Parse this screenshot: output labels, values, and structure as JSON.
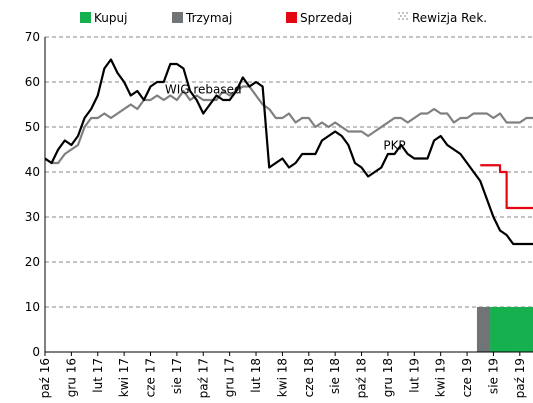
{
  "chart_data": {
    "type": "line",
    "legend": [
      {
        "name": "Kupuj",
        "color": "#17b04f",
        "style": "box"
      },
      {
        "name": "Trzymaj",
        "color": "#707477",
        "style": "box"
      },
      {
        "name": "Sprzedaj",
        "color": "#e30613",
        "style": "box"
      },
      {
        "name": "Rewizja Rek.",
        "color": "#9a9a9a",
        "style": "dots"
      }
    ],
    "annotations": [
      {
        "text": "WIG rebased",
        "index": 24,
        "value": 57.5
      },
      {
        "text": "PKP",
        "index": 53,
        "value": 45
      }
    ],
    "categories": [
      "paź 16",
      null,
      null,
      null,
      "gru 16",
      null,
      null,
      null,
      "lut 17",
      null,
      null,
      null,
      "kwi 17",
      null,
      null,
      null,
      "cze 17",
      null,
      null,
      null,
      "sie 17",
      null,
      null,
      null,
      "paź 17",
      null,
      null,
      null,
      "gru 17",
      null,
      null,
      null,
      "lut 18",
      null,
      null,
      null,
      "kwi 18",
      null,
      null,
      null,
      "cze 18",
      null,
      null,
      null,
      "sie 18",
      null,
      null,
      null,
      "paź 18",
      null,
      null,
      null,
      "gru 18",
      null,
      null,
      null,
      "lut 19",
      null,
      null,
      null,
      "kwi 19",
      null,
      null,
      null,
      "cze 19",
      null,
      null,
      null,
      "sie 19",
      null,
      null,
      null,
      "paź 19",
      null,
      null
    ],
    "series": [
      {
        "name": "WIG rebased",
        "color": "#808080",
        "kind": "line",
        "width": 2.2,
        "values": [
          43,
          42,
          42,
          44,
          45,
          46,
          50,
          52,
          52,
          53,
          52,
          53,
          54,
          55,
          54,
          56,
          56,
          57,
          56,
          57,
          56,
          58,
          56,
          57,
          56,
          56,
          56,
          58,
          57,
          58,
          59,
          59,
          57,
          55,
          54,
          52,
          52,
          53,
          51,
          52,
          52,
          50,
          51,
          50,
          51,
          50,
          49,
          49,
          49,
          48,
          49,
          50,
          51,
          52,
          52,
          51,
          52,
          53,
          53,
          54,
          53,
          53,
          51,
          52,
          52,
          53,
          53,
          53,
          52,
          53,
          51,
          51,
          51,
          52,
          52
        ]
      },
      {
        "name": "PKP",
        "color": "#000000",
        "kind": "line",
        "width": 2.2,
        "values": [
          43,
          42,
          45,
          47,
          46,
          48,
          52,
          54,
          57,
          63,
          65,
          62,
          60,
          57,
          58,
          56,
          59,
          60,
          60,
          64,
          64,
          63,
          58,
          56,
          53,
          55,
          57,
          56,
          56,
          58,
          61,
          59,
          60,
          59,
          41,
          42,
          43,
          41,
          42,
          44,
          44,
          44,
          47,
          48,
          49,
          48,
          46,
          42,
          41,
          39,
          40,
          41,
          44,
          44,
          46,
          44,
          43,
          43,
          43,
          47,
          48,
          46,
          45,
          44,
          42,
          40,
          38,
          34,
          30,
          27,
          26,
          24,
          24,
          24,
          24
        ]
      },
      {
        "color": "#e30613",
        "kind": "step",
        "width": 2.2,
        "values": [
          null,
          null,
          null,
          null,
          null,
          null,
          null,
          null,
          null,
          null,
          null,
          null,
          null,
          null,
          null,
          null,
          null,
          null,
          null,
          null,
          null,
          null,
          null,
          null,
          null,
          null,
          null,
          null,
          null,
          null,
          null,
          null,
          null,
          null,
          null,
          null,
          null,
          null,
          null,
          null,
          null,
          null,
          null,
          null,
          null,
          null,
          null,
          null,
          null,
          null,
          null,
          null,
          null,
          null,
          null,
          null,
          null,
          null,
          null,
          null,
          null,
          null,
          null,
          null,
          null,
          null,
          41.5,
          41.5,
          41.5,
          40,
          32,
          32,
          32,
          32,
          32
        ]
      },
      {
        "color": "#707477",
        "kind": "bar",
        "values": [
          null,
          null,
          null,
          null,
          null,
          null,
          null,
          null,
          null,
          null,
          null,
          null,
          null,
          null,
          null,
          null,
          null,
          null,
          null,
          null,
          null,
          null,
          null,
          null,
          null,
          null,
          null,
          null,
          null,
          null,
          null,
          null,
          null,
          null,
          null,
          null,
          null,
          null,
          null,
          null,
          null,
          null,
          null,
          null,
          null,
          null,
          null,
          null,
          null,
          null,
          null,
          null,
          null,
          null,
          null,
          null,
          null,
          null,
          null,
          null,
          null,
          null,
          null,
          null,
          null,
          null,
          10,
          10,
          null,
          null,
          null,
          null,
          null,
          null,
          null
        ]
      },
      {
        "color": "#17b04f",
        "kind": "bar",
        "values": [
          null,
          null,
          null,
          null,
          null,
          null,
          null,
          null,
          null,
          null,
          null,
          null,
          null,
          null,
          null,
          null,
          null,
          null,
          null,
          null,
          null,
          null,
          null,
          null,
          null,
          null,
          null,
          null,
          null,
          null,
          null,
          null,
          null,
          null,
          null,
          null,
          null,
          null,
          null,
          null,
          null,
          null,
          null,
          null,
          null,
          null,
          null,
          null,
          null,
          null,
          null,
          null,
          null,
          null,
          null,
          null,
          null,
          null,
          null,
          null,
          null,
          null,
          null,
          null,
          null,
          null,
          null,
          null,
          10,
          10,
          10,
          10,
          10,
          10,
          10
        ]
      }
    ],
    "ylim": [
      0,
      70
    ],
    "yticks": [
      0,
      10,
      20,
      30,
      40,
      50,
      60,
      70
    ],
    "grid": true
  }
}
